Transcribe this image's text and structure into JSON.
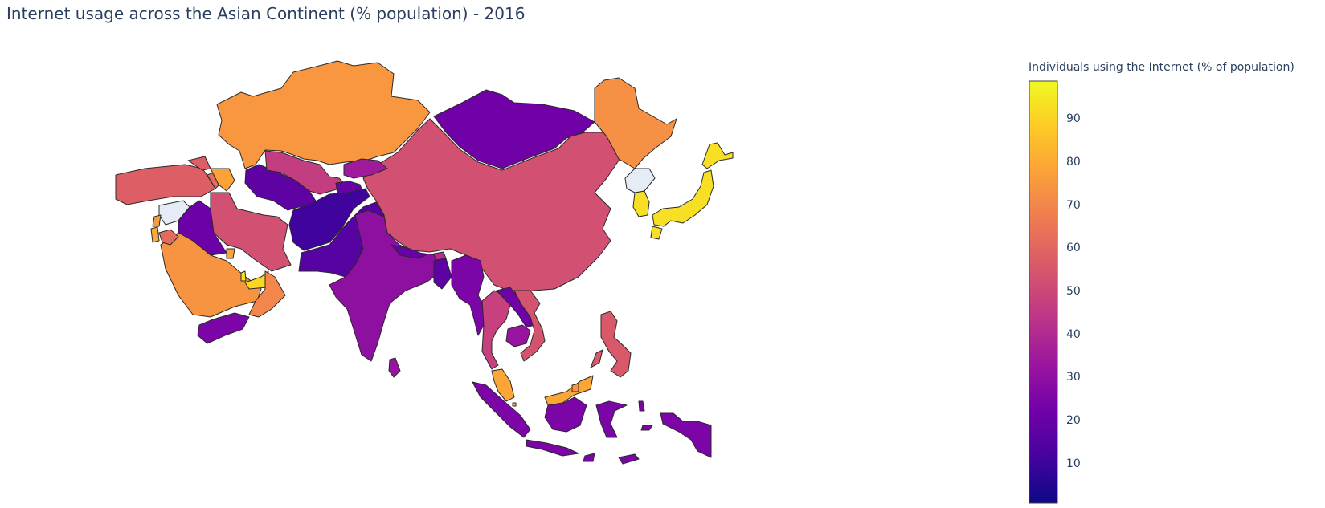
{
  "title": "Internet usage across the Asian Continent (% population) - 2016",
  "colorbar": {
    "title": "Individuals using the Internet (% of population)",
    "ticks": [
      "90",
      "80",
      "70",
      "60",
      "50",
      "40",
      "30",
      "20",
      "10"
    ],
    "range": [
      1,
      99
    ],
    "colors": [
      "#0d0887",
      "#46039f",
      "#7201a8",
      "#9c179e",
      "#bd3786",
      "#d8576b",
      "#ed7953",
      "#fb9f3a",
      "#fdca26",
      "#f0f921"
    ]
  },
  "chart_data": {
    "type": "choropleth",
    "scope": "asia",
    "title": "Internet usage across the Asian Continent (% population) - 2016",
    "colorbar_title": "Individuals using the Internet (% of population)",
    "zrange": [
      1,
      99
    ],
    "missing_data_color": "#e5ecf6",
    "regions": [
      {
        "name": "Kazakhstan",
        "value": 75
      },
      {
        "name": "Mongolia",
        "value": 22
      },
      {
        "name": "China",
        "value": 53
      },
      {
        "name": "Russia (Far East)",
        "value": 73
      },
      {
        "name": "Japan",
        "value": 93
      },
      {
        "name": "South Korea",
        "value": 93
      },
      {
        "name": "North Korea",
        "value": null
      },
      {
        "name": "Turkey",
        "value": 58
      },
      {
        "name": "Georgia",
        "value": 58
      },
      {
        "name": "Armenia",
        "value": 62
      },
      {
        "name": "Azerbaijan",
        "value": 78
      },
      {
        "name": "Syria",
        "value": null
      },
      {
        "name": "Iraq",
        "value": 21
      },
      {
        "name": "Iran",
        "value": 53
      },
      {
        "name": "Saudi Arabia",
        "value": 74
      },
      {
        "name": "Jordan",
        "value": 62
      },
      {
        "name": "Israel",
        "value": 80
      },
      {
        "name": "Lebanon",
        "value": 76
      },
      {
        "name": "Kuwait",
        "value": 78
      },
      {
        "name": "Qatar",
        "value": 94
      },
      {
        "name": "United Arab Emirates",
        "value": 91
      },
      {
        "name": "Oman",
        "value": 70
      },
      {
        "name": "Yemen",
        "value": 25
      },
      {
        "name": "Turkmenistan",
        "value": 18
      },
      {
        "name": "Uzbekistan",
        "value": 47
      },
      {
        "name": "Kyrgyzstan",
        "value": 35
      },
      {
        "name": "Tajikistan",
        "value": 20
      },
      {
        "name": "Afghanistan",
        "value": 11
      },
      {
        "name": "Pakistan",
        "value": 16
      },
      {
        "name": "India",
        "value": 30
      },
      {
        "name": "Nepal",
        "value": 20
      },
      {
        "name": "Bhutan",
        "value": 42
      },
      {
        "name": "Bangladesh",
        "value": 18
      },
      {
        "name": "Sri Lanka",
        "value": 32
      },
      {
        "name": "Myanmar",
        "value": 25
      },
      {
        "name": "Thailand",
        "value": 48
      },
      {
        "name": "Laos",
        "value": 22
      },
      {
        "name": "Cambodia",
        "value": 32
      },
      {
        "name": "Vietnam",
        "value": 54
      },
      {
        "name": "Malaysia",
        "value": 79
      },
      {
        "name": "Singapore",
        "value": 84
      },
      {
        "name": "Brunei",
        "value": 75
      },
      {
        "name": "Philippines",
        "value": 56
      },
      {
        "name": "Indonesia",
        "value": 25
      },
      {
        "name": "Taiwan",
        "value": null
      }
    ]
  }
}
